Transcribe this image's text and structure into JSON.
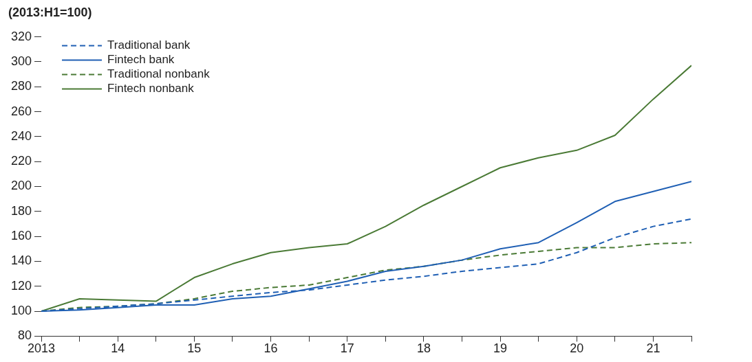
{
  "chart_data": {
    "type": "line",
    "subtitle": "(2013:H1=100)",
    "x": [
      2013,
      2013.5,
      2014,
      2014.5,
      2015,
      2015.5,
      2016,
      2016.5,
      2017,
      2017.5,
      2018,
      2018.5,
      2019,
      2019.5,
      2020,
      2020.5,
      2021,
      2021.5
    ],
    "series": [
      {
        "name": "Traditional bank",
        "color": "#1f5fb4",
        "line_style": "dashed",
        "values": [
          100,
          102,
          104,
          106,
          109,
          112,
          115,
          117,
          121,
          125,
          128,
          132,
          135,
          138,
          147,
          159,
          168,
          174
        ]
      },
      {
        "name": "Fintech bank",
        "color": "#1f5fb4",
        "line_style": "solid",
        "values": [
          100,
          101,
          103,
          105,
          105,
          110,
          112,
          118,
          124,
          132,
          136,
          141,
          150,
          155,
          171,
          188,
          196,
          204
        ]
      },
      {
        "name": "Traditional nonbank",
        "color": "#4a7a35",
        "line_style": "dashed",
        "values": [
          100,
          103,
          104,
          106,
          110,
          116,
          119,
          121,
          127,
          133,
          136,
          141,
          145,
          148,
          151,
          151,
          154,
          155
        ]
      },
      {
        "name": "Fintech nonbank",
        "color": "#4a7a35",
        "line_style": "solid",
        "values": [
          100,
          110,
          109,
          108,
          127,
          138,
          147,
          151,
          154,
          168,
          185,
          200,
          215,
          223,
          229,
          241,
          270,
          297
        ]
      }
    ],
    "xlim": [
      2013,
      2021.5
    ],
    "xticks": [
      {
        "value": 2013,
        "label": "2013"
      },
      {
        "value": 2013.5,
        "label": null
      },
      {
        "value": 2014,
        "label": "14"
      },
      {
        "value": 2014.5,
        "label": null
      },
      {
        "value": 2015,
        "label": "15"
      },
      {
        "value": 2015.5,
        "label": null
      },
      {
        "value": 2016,
        "label": "16"
      },
      {
        "value": 2016.5,
        "label": null
      },
      {
        "value": 2017,
        "label": "17"
      },
      {
        "value": 2017.5,
        "label": null
      },
      {
        "value": 2018,
        "label": "18"
      },
      {
        "value": 2018.5,
        "label": null
      },
      {
        "value": 2019,
        "label": "19"
      },
      {
        "value": 2019.5,
        "label": null
      },
      {
        "value": 2020,
        "label": "20"
      },
      {
        "value": 2020.5,
        "label": null
      },
      {
        "value": 2021,
        "label": "21"
      },
      {
        "value": 2021.5,
        "label": null
      }
    ],
    "ylim": [
      80,
      320
    ],
    "yticks": [
      80,
      100,
      120,
      140,
      160,
      180,
      200,
      220,
      240,
      260,
      280,
      300,
      320
    ],
    "legend": "top left",
    "marker": "none"
  }
}
